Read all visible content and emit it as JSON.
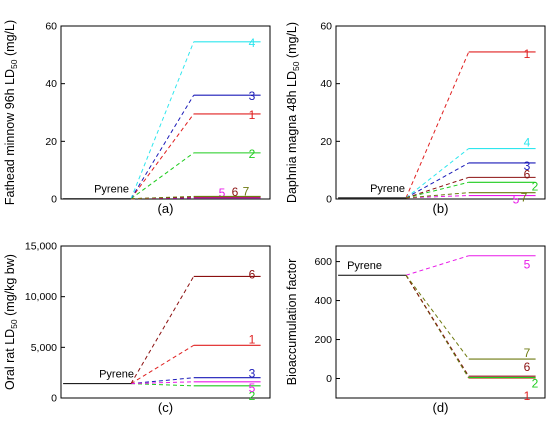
{
  "colors": {
    "1": "#e02020",
    "2": "#1ecc1e",
    "3": "#1a1ab8",
    "4": "#2ee6ee",
    "5": "#e81ae8",
    "6": "#8b1010",
    "7": "#6e7a10",
    "pyrene": "#000000"
  },
  "chart_data": [
    {
      "type": "line",
      "panel_label": "(a)",
      "ylabel": "Fathead minnow 96h LD",
      "ylabel_sub": "50",
      "ylabel_unit": " (mg/L)",
      "ylim": [
        0,
        60
      ],
      "yticks": [
        0,
        20,
        40,
        60
      ],
      "ytick_labels": [
        "0",
        "20",
        "40",
        "60"
      ],
      "reference": {
        "name": "Pyrene",
        "value": 0.1
      },
      "series": [
        {
          "name": "1",
          "value": 29.5
        },
        {
          "name": "2",
          "value": 16
        },
        {
          "name": "3",
          "value": 36
        },
        {
          "name": "4",
          "value": 54.5
        },
        {
          "name": "5",
          "value": 0.4
        },
        {
          "name": "6",
          "value": 0.7
        },
        {
          "name": "7",
          "value": 0.9
        }
      ]
    },
    {
      "type": "line",
      "panel_label": "(b)",
      "ylabel": "Daphnia magna 48h LD",
      "ylabel_sub": "50",
      "ylabel_unit": " (mg/L)",
      "ylim": [
        0,
        60
      ],
      "yticks": [
        0,
        20,
        40,
        60
      ],
      "ytick_labels": [
        "0",
        "20",
        "40",
        "60"
      ],
      "reference": {
        "name": "Pyrene",
        "value": 0.4
      },
      "series": [
        {
          "name": "1",
          "value": 51
        },
        {
          "name": "2",
          "value": 5.8
        },
        {
          "name": "3",
          "value": 12.5
        },
        {
          "name": "4",
          "value": 17.5
        },
        {
          "name": "5",
          "value": 1.2
        },
        {
          "name": "6",
          "value": 7.5
        },
        {
          "name": "7",
          "value": 2.2
        }
      ]
    },
    {
      "type": "line",
      "panel_label": "(c)",
      "ylabel": "Oral rat LD",
      "ylabel_sub": "50",
      "ylabel_unit": " (mg/kg bw)",
      "ylim": [
        0,
        15000
      ],
      "yticks": [
        0,
        5000,
        10000,
        15000
      ],
      "ytick_labels": [
        "0",
        "5,000",
        "10,000",
        "15,000"
      ],
      "reference": {
        "name": "Pyrene",
        "value": 1420
      },
      "series": [
        {
          "name": "1",
          "value": 5200
        },
        {
          "name": "2",
          "value": 1200
        },
        {
          "name": "3",
          "value": 2000
        },
        {
          "name": "5",
          "value": 1600
        },
        {
          "name": "6",
          "value": 12000
        }
      ]
    },
    {
      "type": "line",
      "panel_label": "(d)",
      "ylabel": "Bioaccumulation factor",
      "ylabel_sub": "",
      "ylabel_unit": "",
      "ylim": [
        -100,
        680
      ],
      "yticks": [
        0,
        200,
        400,
        600
      ],
      "ytick_labels": [
        "0",
        "200",
        "400",
        "600"
      ],
      "reference": {
        "name": "Pyrene",
        "value": 530
      },
      "series": [
        {
          "name": "1",
          "value": 2
        },
        {
          "name": "2",
          "value": 5
        },
        {
          "name": "5",
          "value": 630
        },
        {
          "name": "6",
          "value": 12
        },
        {
          "name": "7",
          "value": 100
        }
      ]
    }
  ]
}
